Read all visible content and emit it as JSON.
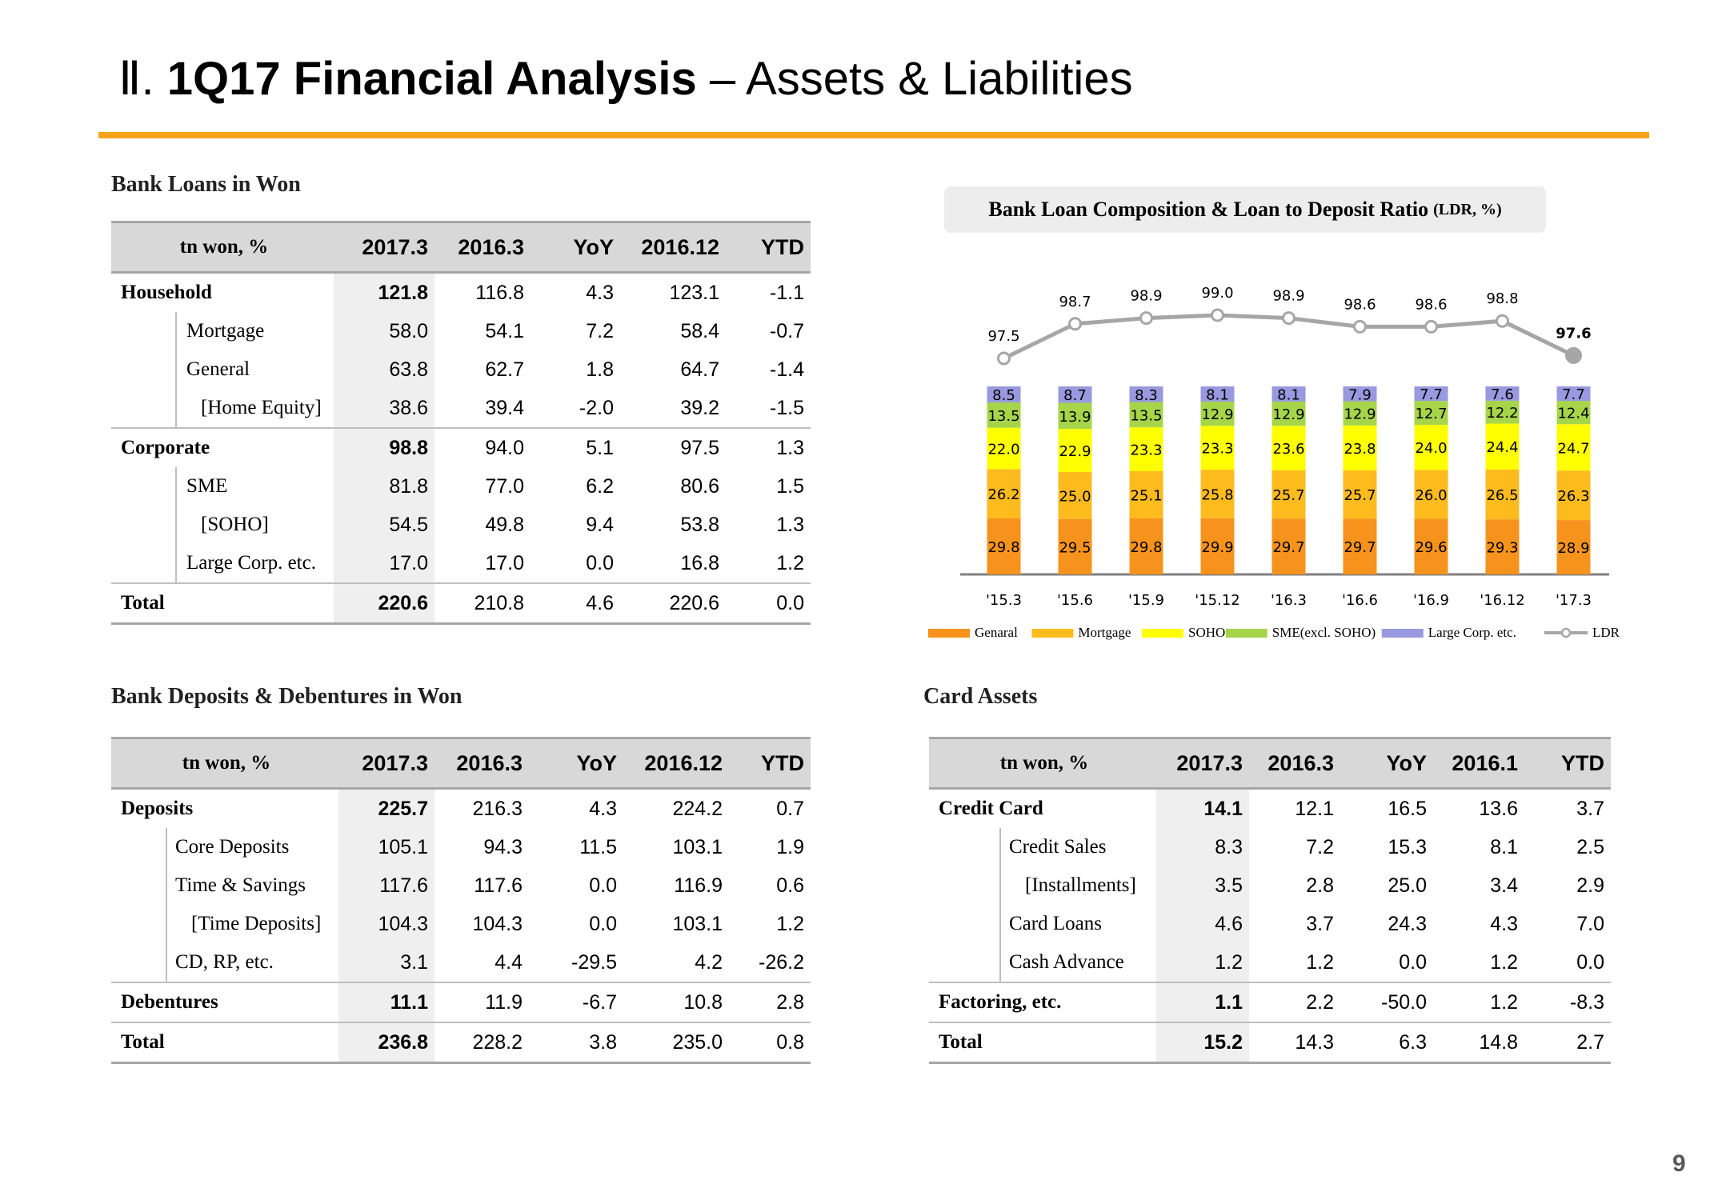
{
  "header": {
    "roman": "Ⅱ.",
    "title_bold": "1Q17 Financial Analysis",
    "title_rest": "– Assets & Liabilities"
  },
  "loans": {
    "title": "Bank Loans in Won",
    "columns": [
      "tn won, %",
      "2017.3",
      "2016.3",
      "YoY",
      "2016.12",
      "YTD"
    ],
    "rows": [
      {
        "label": "Household",
        "values": [
          "121.8",
          "116.8",
          "4.3",
          "123.1",
          "-1.1"
        ]
      },
      {
        "label": "Mortgage",
        "values": [
          "58.0",
          "54.1",
          "7.2",
          "58.4",
          "-0.7"
        ]
      },
      {
        "label": "General",
        "values": [
          "63.8",
          "62.7",
          "1.8",
          "64.7",
          "-1.4"
        ]
      },
      {
        "label": "[Home Equity]",
        "values": [
          "38.6",
          "39.4",
          "-2.0",
          "39.2",
          "-1.5"
        ]
      },
      {
        "label": "Corporate",
        "values": [
          "98.8",
          "94.0",
          "5.1",
          "97.5",
          "1.3"
        ]
      },
      {
        "label": "SME",
        "values": [
          "81.8",
          "77.0",
          "6.2",
          "80.6",
          "1.5"
        ]
      },
      {
        "label": "[SOHO]",
        "values": [
          "54.5",
          "49.8",
          "9.4",
          "53.8",
          "1.3"
        ]
      },
      {
        "label": "Large Corp. etc.",
        "values": [
          "17.0",
          "17.0",
          "0.0",
          "16.8",
          "1.2"
        ]
      },
      {
        "label": "Total",
        "values": [
          "220.6",
          "210.8",
          "4.6",
          "220.6",
          "0.0"
        ]
      }
    ]
  },
  "deposits": {
    "title": "Bank Deposits & Debentures in Won",
    "columns": [
      "tn won, %",
      "2017.3",
      "2016.3",
      "YoY",
      "2016.12",
      "YTD"
    ],
    "rows": [
      {
        "label": "Deposits",
        "values": [
          "225.7",
          "216.3",
          "4.3",
          "224.2",
          "0.7"
        ]
      },
      {
        "label": "Core Deposits",
        "values": [
          "105.1",
          "94.3",
          "11.5",
          "103.1",
          "1.9"
        ]
      },
      {
        "label": "Time & Savings",
        "values": [
          "117.6",
          "117.6",
          "0.0",
          "116.9",
          "0.6"
        ]
      },
      {
        "label": "[Time Deposits]",
        "values": [
          "104.3",
          "104.3",
          "0.0",
          "103.1",
          "1.2"
        ]
      },
      {
        "label": "CD, RP, etc.",
        "values": [
          "3.1",
          "4.4",
          "-29.5",
          "4.2",
          "-26.2"
        ]
      },
      {
        "label": "Debentures",
        "values": [
          "11.1",
          "11.9",
          "-6.7",
          "10.8",
          "2.8"
        ]
      },
      {
        "label": "Total",
        "values": [
          "236.8",
          "228.2",
          "3.8",
          "235.0",
          "0.8"
        ]
      }
    ]
  },
  "card": {
    "title": "Card Assets",
    "columns": [
      "tn won, %",
      "2017.3",
      "2016.3",
      "YoY",
      "2016.1",
      "YTD"
    ],
    "rows": [
      {
        "label": "Credit Card",
        "values": [
          "14.1",
          "12.1",
          "16.5",
          "13.6",
          "3.7"
        ]
      },
      {
        "label": "Credit Sales",
        "values": [
          "8.3",
          "7.2",
          "15.3",
          "8.1",
          "2.5"
        ]
      },
      {
        "label": "[Installments]",
        "values": [
          "3.5",
          "2.8",
          "25.0",
          "3.4",
          "2.9"
        ]
      },
      {
        "label": "Card Loans",
        "values": [
          "4.6",
          "3.7",
          "24.3",
          "4.3",
          "7.0"
        ]
      },
      {
        "label": "Cash Advance",
        "values": [
          "1.2",
          "1.2",
          "0.0",
          "1.2",
          "0.0"
        ]
      },
      {
        "label": "Factoring, etc.",
        "values": [
          "1.1",
          "2.2",
          "-50.0",
          "1.2",
          "-8.3"
        ]
      },
      {
        "label": "Total",
        "values": [
          "15.2",
          "14.3",
          "6.3",
          "14.8",
          "2.7"
        ]
      }
    ]
  },
  "chart_title": {
    "main": "Bank Loan Composition & Loan to Deposit Ratio",
    "unit": "(LDR, %)"
  },
  "chart_data": {
    "type": "bar",
    "stacked": true,
    "categories": [
      "'15.3",
      "'15.6",
      "'15.9",
      "'15.12",
      "'16.3",
      "'16.6",
      "'16.9",
      "'16.12",
      "'17.3"
    ],
    "series": [
      {
        "name": "Genaral",
        "color": "#f7931d",
        "values": [
          29.8,
          29.5,
          29.8,
          29.9,
          29.7,
          29.7,
          29.6,
          29.3,
          28.9
        ]
      },
      {
        "name": "Mortgage",
        "color": "#fdbb1e",
        "values": [
          26.2,
          25.0,
          25.1,
          25.8,
          25.7,
          25.7,
          26.0,
          26.5,
          26.3
        ]
      },
      {
        "name": "SOHO",
        "color": "#ffff00",
        "values": [
          22.0,
          22.9,
          23.3,
          23.3,
          23.6,
          23.8,
          24.0,
          24.4,
          24.7
        ]
      },
      {
        "name": "SME(excl. SOHO)",
        "color": "#a6d54a",
        "values": [
          13.5,
          13.9,
          13.5,
          12.9,
          12.9,
          12.9,
          12.7,
          12.2,
          12.4
        ]
      },
      {
        "name": "Large Corp. etc.",
        "color": "#9999e0",
        "values": [
          8.5,
          8.7,
          8.3,
          8.1,
          8.1,
          7.9,
          7.7,
          7.6,
          7.7
        ]
      }
    ],
    "line": {
      "name": "LDR",
      "color": "#a6a6a6",
      "values": [
        97.5,
        98.7,
        98.9,
        99.0,
        98.9,
        98.6,
        98.6,
        98.8,
        97.6
      ]
    },
    "legend_position": "bottom",
    "grid": false
  },
  "page_number": "9"
}
